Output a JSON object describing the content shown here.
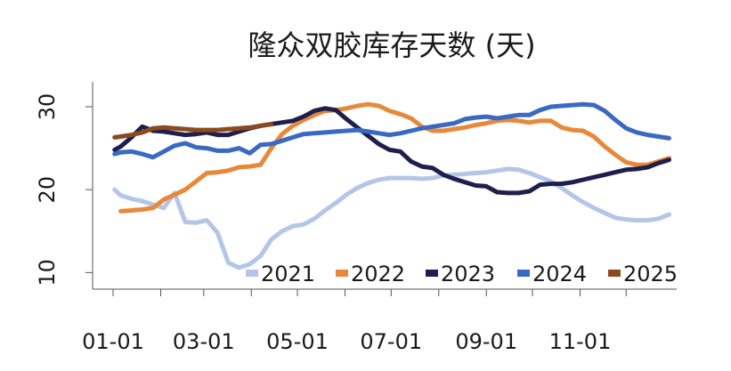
{
  "chart_data": {
    "type": "line",
    "title": "隆众双胶库存天数 (天)",
    "xlabel": "",
    "ylabel": "",
    "ylim": [
      8,
      33
    ],
    "yticks": [
      10,
      20,
      30
    ],
    "x_label_months": [
      "01-01",
      "03-01",
      "05-01",
      "07-01",
      "09-01",
      "11-01"
    ],
    "grid": false,
    "legend_position": "bottom-right",
    "series": [
      {
        "name": "2021",
        "color": "#b4c6e7",
        "points": [
          [
            "01-02",
            20.0
          ],
          [
            "01-06",
            19.3
          ],
          [
            "01-13",
            18.9
          ],
          [
            "01-20",
            18.6
          ],
          [
            "01-27",
            18.2
          ],
          [
            "02-03",
            17.8
          ],
          [
            "02-10",
            19.6
          ],
          [
            "02-17",
            16.1
          ],
          [
            "02-24",
            16.0
          ],
          [
            "03-03",
            16.3
          ],
          [
            "03-10",
            14.8
          ],
          [
            "03-17",
            11.2
          ],
          [
            "03-24",
            10.6
          ],
          [
            "03-31",
            11.0
          ],
          [
            "04-07",
            12.0
          ],
          [
            "04-14",
            14.0
          ],
          [
            "04-21",
            15.0
          ],
          [
            "04-28",
            15.6
          ],
          [
            "05-05",
            15.8
          ],
          [
            "05-12",
            16.5
          ],
          [
            "05-19",
            17.5
          ],
          [
            "05-26",
            18.4
          ],
          [
            "06-02",
            19.4
          ],
          [
            "06-09",
            20.2
          ],
          [
            "06-16",
            20.8
          ],
          [
            "06-23",
            21.2
          ],
          [
            "06-30",
            21.4
          ],
          [
            "07-07",
            21.4
          ],
          [
            "07-14",
            21.4
          ],
          [
            "07-21",
            21.3
          ],
          [
            "07-28",
            21.4
          ],
          [
            "08-04",
            21.7
          ],
          [
            "08-11",
            21.8
          ],
          [
            "08-18",
            21.9
          ],
          [
            "08-25",
            22.0
          ],
          [
            "09-01",
            22.1
          ],
          [
            "09-08",
            22.3
          ],
          [
            "09-15",
            22.5
          ],
          [
            "09-22",
            22.4
          ],
          [
            "09-29",
            22.0
          ],
          [
            "10-06",
            21.5
          ],
          [
            "10-13",
            21.0
          ],
          [
            "10-20",
            20.2
          ],
          [
            "10-27",
            19.3
          ],
          [
            "11-03",
            18.5
          ],
          [
            "11-10",
            17.8
          ],
          [
            "11-17",
            17.2
          ],
          [
            "11-24",
            16.6
          ],
          [
            "12-01",
            16.4
          ],
          [
            "12-08",
            16.3
          ],
          [
            "12-15",
            16.3
          ],
          [
            "12-22",
            16.5
          ],
          [
            "12-29",
            17.0
          ]
        ]
      },
      {
        "name": "2022",
        "color": "#e8883a",
        "points": [
          [
            "01-06",
            17.4
          ],
          [
            "01-13",
            17.5
          ],
          [
            "01-20",
            17.6
          ],
          [
            "01-27",
            17.8
          ],
          [
            "02-03",
            18.8
          ],
          [
            "02-10",
            19.4
          ],
          [
            "02-17",
            20.0
          ],
          [
            "02-24",
            21.0
          ],
          [
            "03-03",
            22.0
          ],
          [
            "03-10",
            22.1
          ],
          [
            "03-17",
            22.3
          ],
          [
            "03-24",
            22.7
          ],
          [
            "03-31",
            22.8
          ],
          [
            "04-07",
            23.0
          ],
          [
            "04-14",
            25.0
          ],
          [
            "04-21",
            26.7
          ],
          [
            "04-28",
            27.7
          ],
          [
            "05-05",
            28.4
          ],
          [
            "05-12",
            29.0
          ],
          [
            "05-19",
            29.5
          ],
          [
            "05-26",
            29.6
          ],
          [
            "06-02",
            29.8
          ],
          [
            "06-09",
            30.1
          ],
          [
            "06-16",
            30.3
          ],
          [
            "06-23",
            30.1
          ],
          [
            "06-30",
            29.5
          ],
          [
            "07-07",
            29.1
          ],
          [
            "07-14",
            28.6
          ],
          [
            "07-21",
            27.6
          ],
          [
            "07-28",
            27.1
          ],
          [
            "08-04",
            27.1
          ],
          [
            "08-11",
            27.3
          ],
          [
            "08-18",
            27.5
          ],
          [
            "08-25",
            27.8
          ],
          [
            "09-01",
            28.0
          ],
          [
            "09-08",
            28.3
          ],
          [
            "09-15",
            28.4
          ],
          [
            "09-22",
            28.3
          ],
          [
            "09-29",
            28.1
          ],
          [
            "10-06",
            28.3
          ],
          [
            "10-13",
            28.3
          ],
          [
            "10-20",
            27.5
          ],
          [
            "10-27",
            27.2
          ],
          [
            "11-03",
            27.1
          ],
          [
            "11-10",
            26.4
          ],
          [
            "11-17",
            25.2
          ],
          [
            "11-24",
            24.2
          ],
          [
            "12-01",
            23.3
          ],
          [
            "12-08",
            23.0
          ],
          [
            "12-15",
            23.0
          ],
          [
            "12-22",
            23.4
          ],
          [
            "12-29",
            23.8
          ]
        ]
      },
      {
        "name": "2023",
        "color": "#1f1f4d",
        "points": [
          [
            "01-02",
            24.8
          ],
          [
            "01-06",
            25.2
          ],
          [
            "01-13",
            26.3
          ],
          [
            "01-20",
            27.6
          ],
          [
            "01-27",
            27.1
          ],
          [
            "02-03",
            27.0
          ],
          [
            "02-10",
            26.8
          ],
          [
            "02-17",
            26.6
          ],
          [
            "02-24",
            26.7
          ],
          [
            "03-03",
            26.9
          ],
          [
            "03-10",
            26.6
          ],
          [
            "03-17",
            26.6
          ],
          [
            "03-24",
            27.0
          ],
          [
            "03-31",
            27.4
          ],
          [
            "04-07",
            27.7
          ],
          [
            "04-14",
            27.9
          ],
          [
            "04-21",
            28.1
          ],
          [
            "04-28",
            28.3
          ],
          [
            "05-05",
            28.8
          ],
          [
            "05-12",
            29.5
          ],
          [
            "05-19",
            29.8
          ],
          [
            "05-26",
            29.6
          ],
          [
            "06-02",
            28.5
          ],
          [
            "06-09",
            27.5
          ],
          [
            "06-16",
            26.5
          ],
          [
            "06-23",
            25.5
          ],
          [
            "06-30",
            24.8
          ],
          [
            "07-07",
            24.6
          ],
          [
            "07-14",
            23.4
          ],
          [
            "07-21",
            22.8
          ],
          [
            "07-28",
            22.6
          ],
          [
            "08-04",
            21.8
          ],
          [
            "08-11",
            21.3
          ],
          [
            "08-18",
            20.9
          ],
          [
            "08-25",
            20.5
          ],
          [
            "09-01",
            20.4
          ],
          [
            "09-08",
            19.7
          ],
          [
            "09-15",
            19.6
          ],
          [
            "09-22",
            19.6
          ],
          [
            "09-29",
            19.8
          ],
          [
            "10-06",
            20.6
          ],
          [
            "10-13",
            20.7
          ],
          [
            "10-20",
            20.7
          ],
          [
            "10-27",
            20.9
          ],
          [
            "11-03",
            21.2
          ],
          [
            "11-10",
            21.5
          ],
          [
            "11-17",
            21.8
          ],
          [
            "11-24",
            22.1
          ],
          [
            "12-01",
            22.4
          ],
          [
            "12-08",
            22.5
          ],
          [
            "12-15",
            22.7
          ],
          [
            "12-22",
            23.2
          ],
          [
            "12-29",
            23.6
          ]
        ]
      },
      {
        "name": "2024",
        "color": "#3a69c4",
        "points": [
          [
            "01-02",
            24.3
          ],
          [
            "01-06",
            24.5
          ],
          [
            "01-13",
            24.6
          ],
          [
            "01-20",
            24.3
          ],
          [
            "01-27",
            23.9
          ],
          [
            "02-03",
            24.6
          ],
          [
            "02-10",
            25.3
          ],
          [
            "02-17",
            25.6
          ],
          [
            "02-24",
            25.1
          ],
          [
            "03-03",
            25.0
          ],
          [
            "03-10",
            24.7
          ],
          [
            "03-17",
            24.7
          ],
          [
            "03-24",
            25.0
          ],
          [
            "03-31",
            24.4
          ],
          [
            "04-07",
            25.4
          ],
          [
            "04-14",
            25.5
          ],
          [
            "04-21",
            25.9
          ],
          [
            "04-28",
            26.3
          ],
          [
            "05-05",
            26.7
          ],
          [
            "05-12",
            26.8
          ],
          [
            "05-19",
            26.9
          ],
          [
            "05-26",
            27.0
          ],
          [
            "06-02",
            27.1
          ],
          [
            "06-09",
            27.2
          ],
          [
            "06-16",
            27.0
          ],
          [
            "06-23",
            26.8
          ],
          [
            "06-30",
            26.6
          ],
          [
            "07-07",
            26.8
          ],
          [
            "07-14",
            27.1
          ],
          [
            "07-21",
            27.4
          ],
          [
            "07-28",
            27.6
          ],
          [
            "08-04",
            27.8
          ],
          [
            "08-11",
            28.0
          ],
          [
            "08-18",
            28.5
          ],
          [
            "08-25",
            28.7
          ],
          [
            "09-01",
            28.8
          ],
          [
            "09-08",
            28.6
          ],
          [
            "09-15",
            28.8
          ],
          [
            "09-22",
            29.0
          ],
          [
            "09-29",
            29.0
          ],
          [
            "10-06",
            29.6
          ],
          [
            "10-13",
            30.0
          ],
          [
            "10-20",
            30.1
          ],
          [
            "10-27",
            30.2
          ],
          [
            "11-03",
            30.3
          ],
          [
            "11-10",
            30.2
          ],
          [
            "11-17",
            29.5
          ],
          [
            "11-24",
            28.4
          ],
          [
            "12-01",
            27.4
          ],
          [
            "12-08",
            26.9
          ],
          [
            "12-15",
            26.6
          ],
          [
            "12-22",
            26.4
          ],
          [
            "12-29",
            26.2
          ]
        ]
      },
      {
        "name": "2025",
        "color": "#8b4a1e",
        "points": [
          [
            "01-02",
            26.3
          ],
          [
            "01-06",
            26.4
          ],
          [
            "01-13",
            26.6
          ],
          [
            "01-20",
            26.9
          ],
          [
            "01-27",
            27.4
          ],
          [
            "02-03",
            27.5
          ],
          [
            "02-10",
            27.4
          ],
          [
            "02-17",
            27.3
          ],
          [
            "02-24",
            27.2
          ],
          [
            "03-03",
            27.2
          ],
          [
            "03-10",
            27.2
          ],
          [
            "03-17",
            27.3
          ],
          [
            "03-24",
            27.4
          ],
          [
            "03-31",
            27.5
          ],
          [
            "04-07",
            27.7
          ],
          [
            "04-14",
            27.9
          ]
        ]
      }
    ]
  }
}
